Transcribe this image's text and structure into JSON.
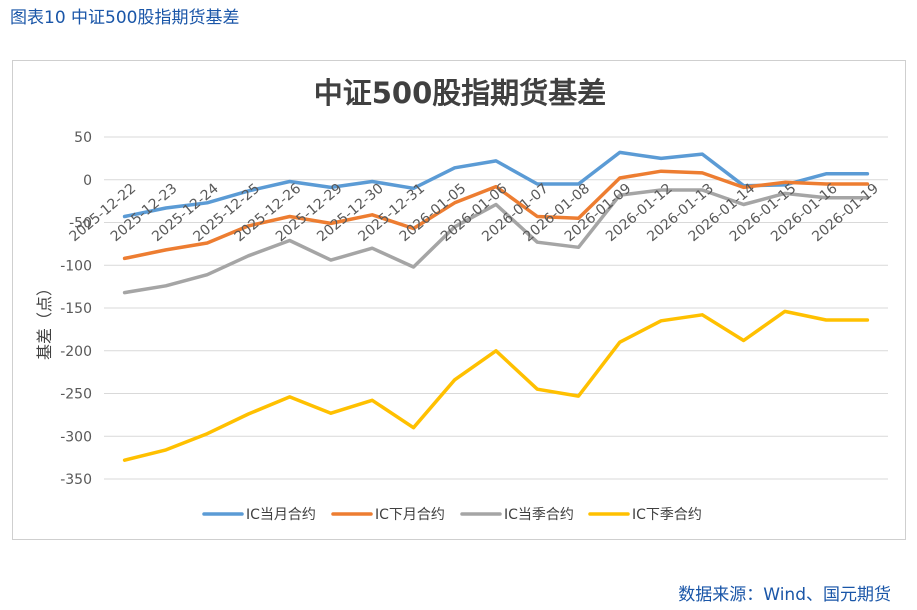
{
  "figure_title": "图表10  中证500股指期货基差",
  "source": "数据来源：Wind、国元期货",
  "chart_data": {
    "type": "line",
    "title": "中证500股指期货基差",
    "xlabel": "",
    "ylabel": "基差（点）",
    "ylim": [
      -350,
      50
    ],
    "yticks": [
      50,
      0,
      -50,
      -100,
      -150,
      -200,
      -250,
      -300,
      -350
    ],
    "grid": true,
    "legend_position": "bottom",
    "categories": [
      "2025-12-22",
      "2025-12-23",
      "2025-12-24",
      "2025-12-25",
      "2025-12-26",
      "2025-12-29",
      "2025-12-30",
      "2025-12-31",
      "2026-01-05",
      "2026-01-06",
      "2026-01-07",
      "2026-01-08",
      "2026-01-09",
      "2026-01-12",
      "2026-01-13",
      "2026-01-14",
      "2026-01-15",
      "2026-01-16",
      "2026-01-19"
    ],
    "series": [
      {
        "name": "IC当月合约",
        "color": "#5b9bd5",
        "values": [
          -43,
          -33,
          -27,
          -13,
          -2,
          -9,
          -2,
          -10,
          14,
          22,
          -5,
          -5,
          32,
          25,
          30,
          -7,
          -6,
          7,
          7
        ]
      },
      {
        "name": "IC下月合约",
        "color": "#ed7d31",
        "values": [
          -92,
          -82,
          -74,
          -54,
          -43,
          -51,
          -41,
          -57,
          -27,
          -8,
          -43,
          -45,
          2,
          10,
          8,
          -9,
          -3,
          -5,
          -5
        ]
      },
      {
        "name": "IC当季合约",
        "color": "#a5a5a5",
        "values": [
          -132,
          -124,
          -111,
          -89,
          -71,
          -94,
          -80,
          -102,
          -55,
          -29,
          -73,
          -79,
          -18,
          -12,
          -12,
          -29,
          -16,
          -21,
          -21
        ]
      },
      {
        "name": "IC下季合约",
        "color": "#ffc000",
        "values": [
          -328,
          -316,
          -297,
          -274,
          -254,
          -273,
          -258,
          -290,
          -234,
          -200,
          -245,
          -253,
          -190,
          -165,
          -158,
          -188,
          -154,
          -164,
          -164
        ]
      }
    ]
  }
}
